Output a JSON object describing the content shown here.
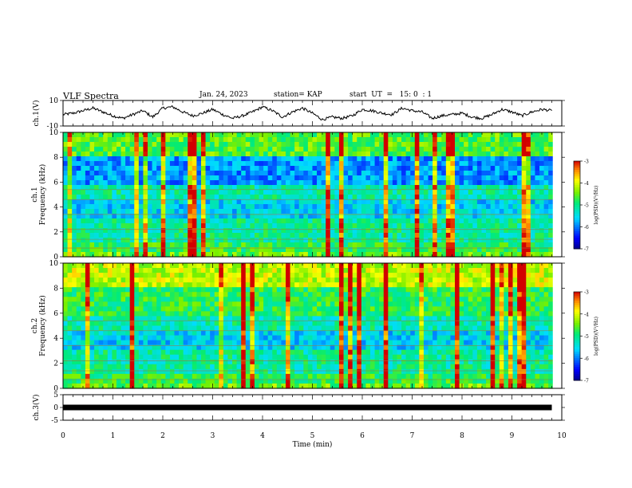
{
  "header": {
    "title": "VLF Spectra",
    "date": "Jan. 24, 2023",
    "station": "station= KAP",
    "start": "start  UT  =   15: 0  : 1"
  },
  "chart_data": [
    {
      "id": "ch1-waveform",
      "type": "line",
      "ylabel": "ch.1(V)",
      "ylim": [
        -10,
        10
      ],
      "yticks": [
        "10",
        "-10"
      ],
      "xlim": [
        0,
        10
      ],
      "x": [
        0,
        0.2,
        0.4,
        0.6,
        0.8,
        1.0,
        1.2,
        1.4,
        1.6,
        1.8,
        2.0,
        2.2,
        2.4,
        2.6,
        2.8,
        3.0,
        3.2,
        3.4,
        3.6,
        3.8,
        4.0,
        4.2,
        4.4,
        4.6,
        4.8,
        5.0,
        5.2,
        5.4,
        5.6,
        5.8,
        6.0,
        6.2,
        6.4,
        6.6,
        6.8,
        7.0,
        7.2,
        7.4,
        7.6,
        7.8,
        8.0,
        8.2,
        8.4,
        8.6,
        8.8,
        9.0,
        9.2,
        9.4,
        9.6,
        9.8
      ],
      "y": [
        -1,
        0,
        2,
        4,
        1,
        -2,
        -4,
        -1,
        2,
        -3,
        4,
        5,
        1,
        -2,
        0,
        3,
        -1,
        -4,
        -2,
        1,
        5,
        2,
        -3,
        1,
        4,
        0,
        -5,
        -3,
        -4,
        -2,
        3,
        2,
        0,
        -1,
        4,
        2,
        1,
        -4,
        -2,
        -1,
        0,
        -3,
        -4,
        -1,
        3,
        1,
        -2,
        1,
        3,
        2
      ]
    },
    {
      "id": "ch1-spectrogram",
      "type": "heatmap",
      "ylabel": "ch.1\nFrequency (kHz)",
      "ylim": [
        0,
        10
      ],
      "yticks": [
        "0",
        "2",
        "4",
        "6",
        "8",
        "10"
      ],
      "xlim": [
        0,
        10
      ],
      "colorbar": {
        "label": "log(PSD)(V²/Hz)",
        "range": [
          -7,
          -3
        ],
        "ticks": [
          "-3",
          "-4",
          "-5",
          "-6",
          "-7"
        ]
      }
    },
    {
      "id": "ch2-spectrogram",
      "type": "heatmap",
      "ylabel": "ch.2\nFrequency (kHz)",
      "ylim": [
        0,
        10
      ],
      "yticks": [
        "0",
        "2",
        "4",
        "6",
        "8",
        "10"
      ],
      "xlim": [
        0,
        10
      ],
      "colorbar": {
        "label": "log(PSD)(V²/Hz)",
        "range": [
          -7,
          -3
        ],
        "ticks": [
          "-3",
          "-4",
          "-5",
          "-6",
          "-7"
        ]
      }
    },
    {
      "id": "ch3-waveform",
      "type": "line",
      "ylabel": "ch.3(V)",
      "ylim": [
        -5,
        5
      ],
      "yticks": [
        "5",
        "0",
        "-5"
      ],
      "xlim": [
        0,
        10
      ],
      "x": [
        0,
        9.8
      ],
      "y": [
        0,
        0
      ],
      "xlabel": "Time (min)",
      "xticks": [
        "0",
        "1",
        "2",
        "3",
        "4",
        "5",
        "6",
        "7",
        "8",
        "9",
        "10"
      ]
    }
  ]
}
